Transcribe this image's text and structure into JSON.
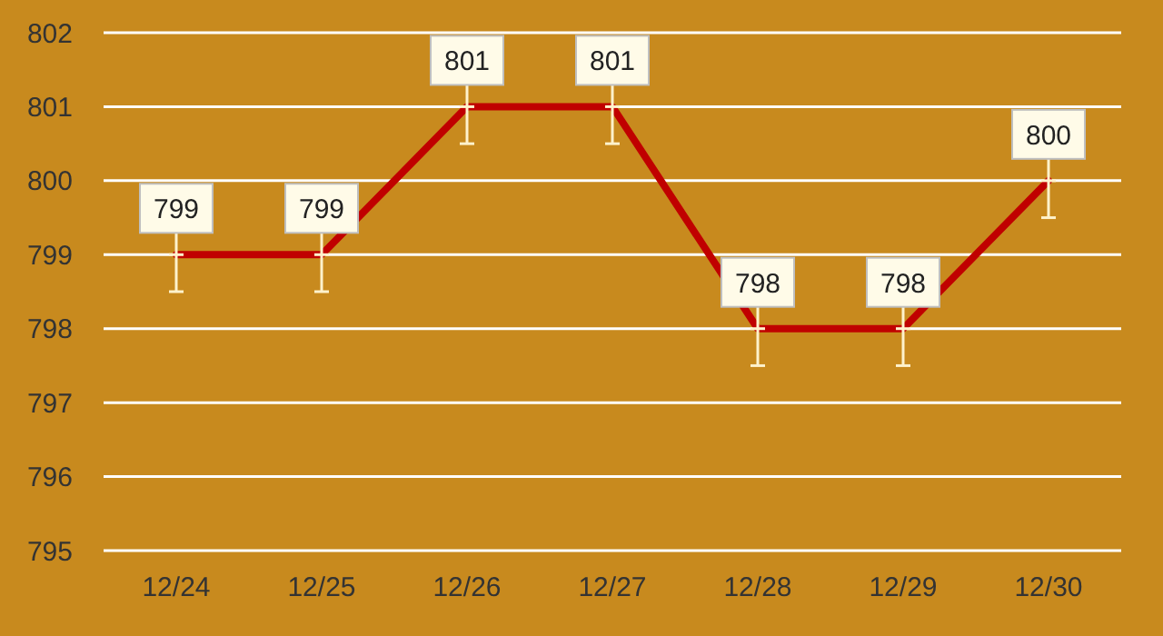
{
  "chart_data": {
    "type": "line",
    "categories": [
      "12/24",
      "12/25",
      "12/26",
      "12/27",
      "12/28",
      "12/29",
      "12/30"
    ],
    "series": [
      {
        "color": "#c00000",
        "values": [
          799,
          799,
          801,
          801,
          798,
          798,
          800
        ],
        "errors": [
          [
            798.5,
            799
          ],
          [
            798.5,
            799
          ],
          [
            800.5,
            801
          ],
          [
            800.5,
            801
          ],
          [
            797.5,
            798
          ],
          [
            797.5,
            798
          ],
          [
            799.5,
            800
          ]
        ]
      }
    ],
    "ylim": [
      795,
      802
    ],
    "yticks": [
      795,
      796,
      797,
      798,
      799,
      800,
      801,
      802
    ],
    "grid": "y",
    "data_labels": true,
    "marker": "none",
    "line_style": "solid"
  }
}
